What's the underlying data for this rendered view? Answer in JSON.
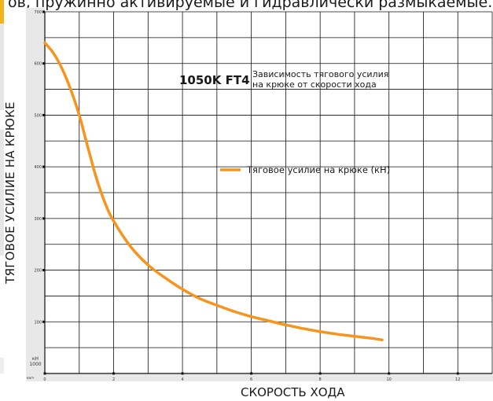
{
  "page_header": "ов, пружинно активируемые и гидравлически размыкаемые.",
  "chart_data": {
    "type": "line",
    "title_model": "1050K FT4",
    "title_line1": "Зависимость тягового усилия",
    "title_line2": "на крюке от скорости хода",
    "xlabel": "СКОРОСТЬ ХОДА",
    "ylabel": "ТЯГОВОЕ УСИЛИЕ НА КРЮКЕ",
    "x_unit": "км/ч",
    "y_unit_line1": "кН",
    "y_unit_line2": "1000",
    "xlim": [
      0,
      13
    ],
    "ylim": [
      0,
      700
    ],
    "x_ticks": [
      "0",
      "2",
      "4",
      "6",
      "8",
      "10",
      "12"
    ],
    "y_ticks": [
      "700",
      "600",
      "500",
      "400",
      "300",
      "200",
      "100"
    ],
    "grid": true,
    "legend_position": "center-right",
    "series": [
      {
        "name": "Тяговое усилие на крюке (кН)",
        "color": "#f7941d",
        "x": [
          0,
          0.25,
          0.5,
          0.75,
          1.0,
          1.25,
          1.5,
          1.75,
          2.0,
          2.5,
          3.0,
          3.5,
          4.0,
          4.5,
          5.0,
          5.5,
          6.0,
          6.5,
          7.0,
          7.5,
          8.0,
          8.5,
          9.0,
          9.5,
          9.8
        ],
        "y": [
          640,
          620,
          590,
          550,
          500,
          438,
          378,
          330,
          295,
          245,
          210,
          185,
          163,
          145,
          132,
          120,
          110,
          102,
          94,
          87,
          81,
          76,
          72,
          68,
          65
        ]
      }
    ]
  }
}
